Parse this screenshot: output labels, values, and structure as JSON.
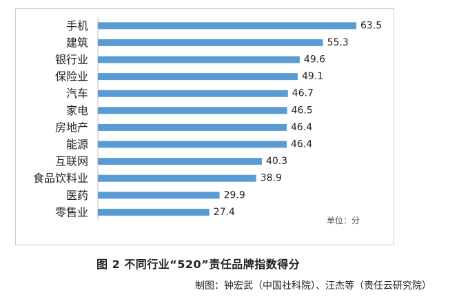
{
  "chart_data": {
    "type": "bar",
    "orientation": "horizontal",
    "categories": [
      "手机",
      "建筑",
      "银行业",
      "保险业",
      "汽车",
      "家电",
      "房地产",
      "能源",
      "互联网",
      "食品饮料业",
      "医药",
      "零售业"
    ],
    "values": [
      63.5,
      55.3,
      49.6,
      49.1,
      46.7,
      46.5,
      46.4,
      46.4,
      40.3,
      38.9,
      29.9,
      27.4
    ],
    "xlim": [
      0,
      63.5
    ],
    "grid": false,
    "legend": "none",
    "bar_color": "#5b9bd5",
    "unit_note": "单位：分"
  },
  "caption": "图 2 不同行业“520”责任品牌指数得分",
  "credit": "制图：钟宏武（中国社科院）、汪杰等（责任云研究院）"
}
